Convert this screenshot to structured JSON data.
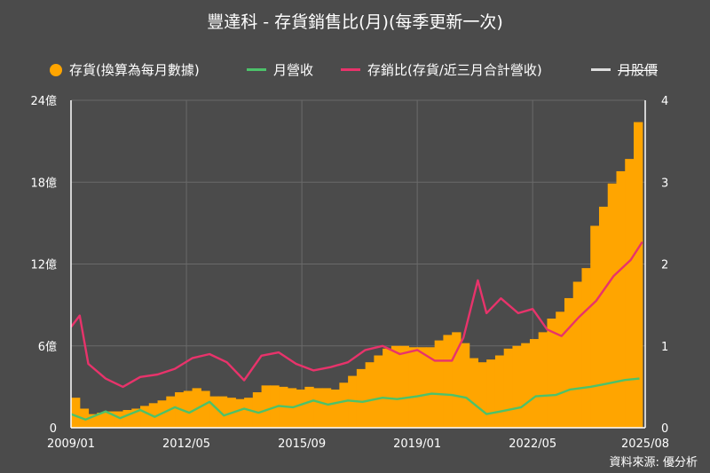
{
  "title": "豐達科 - 存貨銷售比(月)(每季更新一次)",
  "source": "資料來源: 優分析",
  "legend": {
    "inventory": "存貨(換算為每月數據)",
    "revenue": "月營收",
    "ratio": "存銷比(存貨/近三月合計營收)",
    "price": "月股價"
  },
  "colors": {
    "background": "#4b4b4b",
    "inventory": "#ffa500",
    "revenue": "#4cc26a",
    "ratio": "#e8336b",
    "price": "#ffffff",
    "grid": "#6a6a6a"
  },
  "chart_data": {
    "type": "bar",
    "x_ticks": [
      "2009/01",
      "2012/05",
      "2015/09",
      "2019/01",
      "2022/05",
      "2025/08"
    ],
    "y_left_ticks": [
      "0",
      "6億",
      "12億",
      "18億",
      "24億"
    ],
    "y_right_ticks": [
      "0",
      "1",
      "2",
      "3",
      "4"
    ],
    "y_left_range": [
      0,
      24
    ],
    "y_right_range": [
      0,
      4
    ],
    "x_range": [
      "2009/01",
      "2025/08"
    ],
    "grid": true,
    "legend_position": "top",
    "series": [
      {
        "name": "存貨(換算為每月數據)",
        "type": "bar",
        "axis": "left",
        "unit": "億",
        "x": [
          "2009Q1",
          "2009Q2",
          "2009Q3",
          "2009Q4",
          "2010Q1",
          "2010Q2",
          "2010Q3",
          "2010Q4",
          "2011Q1",
          "2011Q2",
          "2011Q3",
          "2011Q4",
          "2012Q1",
          "2012Q2",
          "2012Q3",
          "2012Q4",
          "2013Q1",
          "2013Q2",
          "2013Q3",
          "2013Q4",
          "2014Q1",
          "2014Q2",
          "2014Q3",
          "2014Q4",
          "2015Q1",
          "2015Q2",
          "2015Q3",
          "2015Q4",
          "2016Q1",
          "2016Q2",
          "2016Q3",
          "2016Q4",
          "2017Q1",
          "2017Q2",
          "2017Q3",
          "2017Q4",
          "2018Q1",
          "2018Q2",
          "2018Q3",
          "2018Q4",
          "2019Q1",
          "2019Q2",
          "2019Q3",
          "2019Q4",
          "2020Q1",
          "2020Q2",
          "2020Q3",
          "2020Q4",
          "2021Q1",
          "2021Q2",
          "2021Q3",
          "2021Q4",
          "2022Q1",
          "2022Q2",
          "2022Q3",
          "2022Q4",
          "2023Q1",
          "2023Q2",
          "2023Q3",
          "2023Q4",
          "2024Q1",
          "2024Q2",
          "2024Q3",
          "2024Q4",
          "2025Q1",
          "2025Q2"
        ],
        "values": [
          2.2,
          1.4,
          1.0,
          1.1,
          1.2,
          1.2,
          1.3,
          1.4,
          1.6,
          1.8,
          2.0,
          2.3,
          2.6,
          2.7,
          2.9,
          2.7,
          2.3,
          2.3,
          2.2,
          2.1,
          2.2,
          2.6,
          3.1,
          3.1,
          3.0,
          2.9,
          2.8,
          3.0,
          2.9,
          2.9,
          2.8,
          3.3,
          3.8,
          4.3,
          4.8,
          5.3,
          5.8,
          6.0,
          6.0,
          5.9,
          5.9,
          5.9,
          6.4,
          6.8,
          7.0,
          6.2,
          5.1,
          4.8,
          5.0,
          5.3,
          5.8,
          6.0,
          6.2,
          6.5,
          7.0,
          8.0,
          8.5,
          9.5,
          10.7,
          11.7,
          14.8,
          16.2,
          17.9,
          18.8,
          19.7,
          22.4
        ]
      },
      {
        "name": "月營收",
        "type": "line",
        "axis": "left",
        "unit": "億",
        "x": [
          "2009/01",
          "2009/06",
          "2010/01",
          "2010/06",
          "2011/01",
          "2011/06",
          "2012/01",
          "2012/06",
          "2013/01",
          "2013/06",
          "2014/01",
          "2014/06",
          "2015/01",
          "2015/06",
          "2016/01",
          "2016/06",
          "2017/01",
          "2017/06",
          "2018/01",
          "2018/06",
          "2019/01",
          "2019/06",
          "2020/01",
          "2020/06",
          "2021/01",
          "2021/06",
          "2022/01",
          "2022/06",
          "2023/01",
          "2023/06",
          "2024/01",
          "2024/06",
          "2025/01",
          "2025/06"
        ],
        "values": [
          1.0,
          0.6,
          1.2,
          0.7,
          1.3,
          0.8,
          1.5,
          1.1,
          1.9,
          0.9,
          1.4,
          1.1,
          1.6,
          1.5,
          2.0,
          1.7,
          2.0,
          1.9,
          2.2,
          2.1,
          2.3,
          2.5,
          2.4,
          2.2,
          1.0,
          1.2,
          1.5,
          2.3,
          2.4,
          2.8,
          3.0,
          3.2,
          3.5,
          3.6
        ]
      },
      {
        "name": "存銷比(存貨/近三月合計營收)",
        "type": "line",
        "axis": "right",
        "x": [
          "2009/01",
          "2009/04",
          "2009/07",
          "2010/01",
          "2010/07",
          "2011/01",
          "2011/07",
          "2012/01",
          "2012/07",
          "2013/01",
          "2013/07",
          "2014/01",
          "2014/07",
          "2015/01",
          "2015/07",
          "2016/01",
          "2016/07",
          "2017/01",
          "2017/07",
          "2018/01",
          "2018/07",
          "2019/01",
          "2019/07",
          "2020/01",
          "2020/05",
          "2020/10",
          "2021/01",
          "2021/06",
          "2021/12",
          "2022/05",
          "2022/10",
          "2023/03",
          "2023/09",
          "2024/03",
          "2024/09",
          "2025/03",
          "2025/07"
        ],
        "values": [
          1.23,
          1.37,
          0.78,
          0.6,
          0.5,
          0.62,
          0.65,
          0.72,
          0.85,
          0.9,
          0.8,
          0.58,
          0.88,
          0.92,
          0.78,
          0.7,
          0.74,
          0.8,
          0.95,
          1.0,
          0.9,
          0.95,
          0.82,
          0.82,
          1.1,
          1.8,
          1.4,
          1.58,
          1.4,
          1.45,
          1.2,
          1.12,
          1.35,
          1.55,
          1.85,
          2.05,
          2.27
        ]
      },
      {
        "name": "月股價",
        "type": "line",
        "axis": "right",
        "x": [],
        "values": []
      }
    ]
  }
}
